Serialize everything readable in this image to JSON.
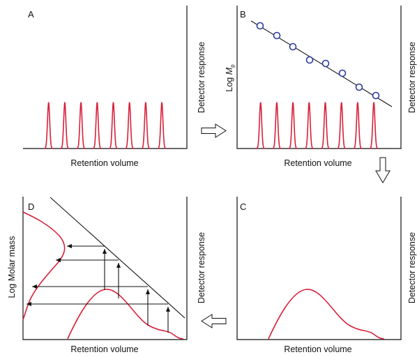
{
  "colors": {
    "curve": "#d8203a",
    "axis": "#111111",
    "marker": "#2b3a9c",
    "arrow": "#111111"
  },
  "panels": {
    "A": {
      "letter": "A",
      "xlabel": "Retention volume",
      "ylabel_right": "Detector response"
    },
    "B": {
      "letter": "B",
      "xlabel": "Retention volume",
      "ylabel_right": "Detector response",
      "ylabel_left_main": "Log ",
      "ylabel_left_italic": "M",
      "ylabel_left_sub": "p"
    },
    "C": {
      "letter": "C",
      "xlabel": "Retention volume",
      "ylabel_right": "Detector response"
    },
    "D": {
      "letter": "D",
      "xlabel": "Retention volume",
      "ylabel_right": "Detector response",
      "ylabel_left": "Log Molar mass"
    }
  },
  "flow_arrows": [
    "right-arrow A to B",
    "down-arrow B to C",
    "left-arrow C to D"
  ]
}
